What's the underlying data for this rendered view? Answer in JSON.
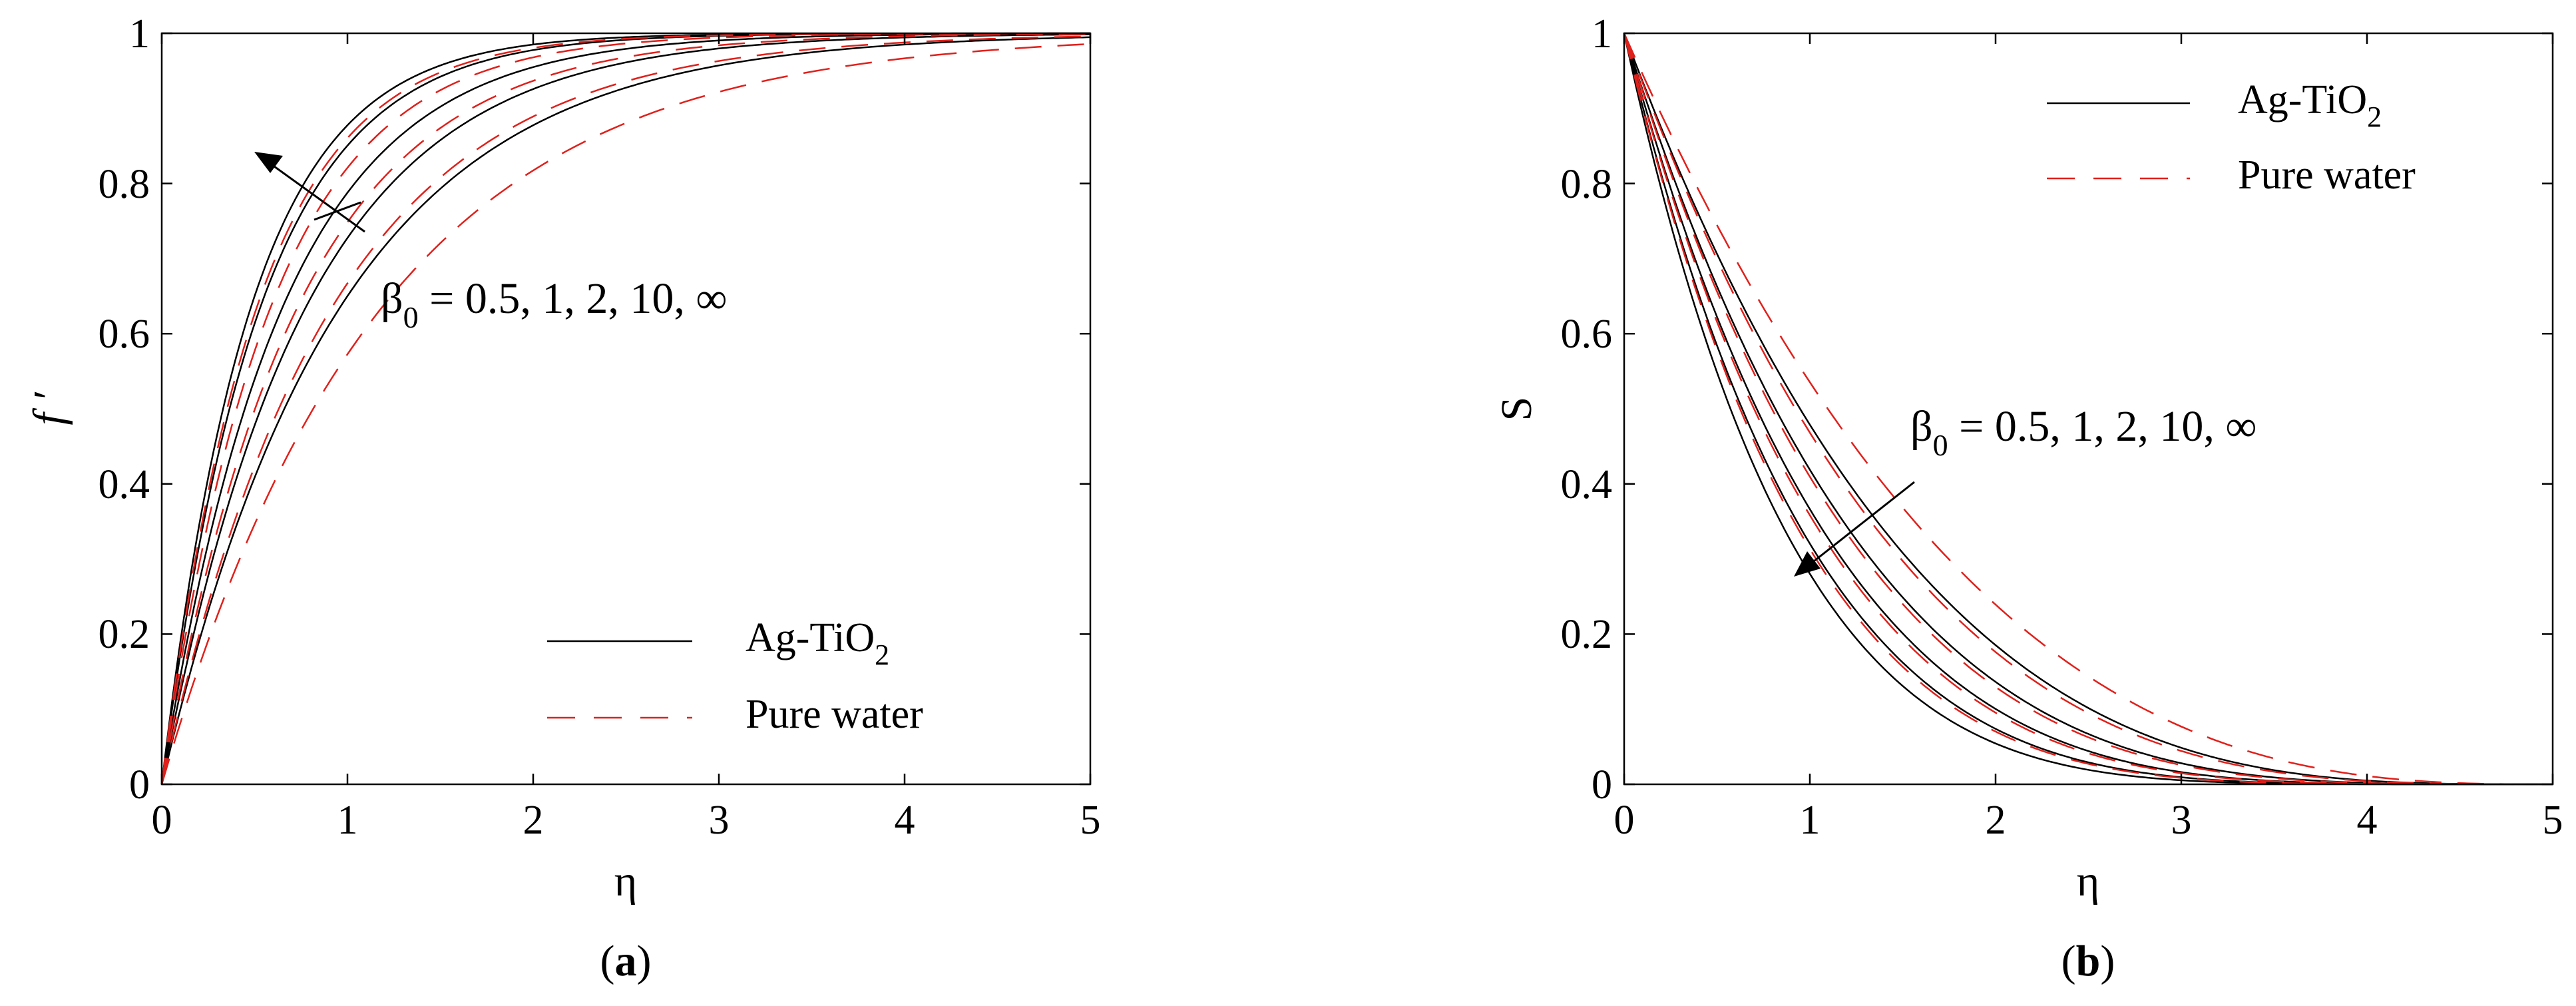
{
  "colors": {
    "nanofluid": "#000000",
    "water": "#e0201b",
    "axes": "#000000",
    "background": "#ffffff"
  },
  "chart_data": [
    {
      "type": "line",
      "panel": "a",
      "caption_open": "(",
      "caption_letter": "a",
      "caption_close": ")",
      "xlabel": "η",
      "ylabel": "f ′",
      "xlim": [
        0,
        5
      ],
      "ylim": [
        0,
        1
      ],
      "xticks": [
        "0",
        "1",
        "2",
        "3",
        "4",
        "5"
      ],
      "yticks": [
        "0",
        "0.2",
        "0.4",
        "0.6",
        "0.8",
        "1"
      ],
      "annotation": {
        "symbol": "β",
        "subscript": "0",
        "text": " = 0.5, 1, 2, 10, ∞",
        "arrow": "toward increasing β0 (up-left)"
      },
      "legend": {
        "position": "bottom-right",
        "entries": [
          {
            "label": "Ag-TiO",
            "sub": "2",
            "style": "solid"
          },
          {
            "label": "Pure water",
            "sub": "",
            "style": "dashed"
          }
        ]
      },
      "curve_model": "f'(η) = 1 - exp(-k η)",
      "series": [
        {
          "name": "Ag-TiO2",
          "beta0": "0.5",
          "k": 1.05
        },
        {
          "name": "Ag-TiO2",
          "beta0": "1",
          "k": 1.3
        },
        {
          "name": "Ag-TiO2",
          "beta0": "2",
          "k": 1.55
        },
        {
          "name": "Ag-TiO2",
          "beta0": "10",
          "k": 1.9
        },
        {
          "name": "Ag-TiO2",
          "beta0": "∞",
          "k": 2.1
        },
        {
          "name": "Pure water",
          "beta0": "0.5",
          "k": 0.85
        },
        {
          "name": "Pure water",
          "beta0": "1",
          "k": 1.1
        },
        {
          "name": "Pure water",
          "beta0": "2",
          "k": 1.38
        },
        {
          "name": "Pure water",
          "beta0": "10",
          "k": 1.72
        },
        {
          "name": "Pure water",
          "beta0": "∞",
          "k": 1.97
        }
      ]
    },
    {
      "type": "line",
      "panel": "b",
      "caption_open": "(",
      "caption_letter": "b",
      "caption_close": ")",
      "xlabel": "η",
      "ylabel": "S",
      "xlim": [
        0,
        5
      ],
      "ylim": [
        0,
        1
      ],
      "xticks": [
        "0",
        "1",
        "2",
        "3",
        "4",
        "5"
      ],
      "yticks": [
        "0",
        "0.2",
        "0.4",
        "0.6",
        "0.8",
        "1"
      ],
      "annotation": {
        "symbol": "β",
        "subscript": "0",
        "text": " = 0.5, 1, 2, 10, ∞",
        "arrow": "toward increasing β0 (down-left)"
      },
      "legend": {
        "position": "top-right",
        "entries": [
          {
            "label": "Ag-TiO",
            "sub": "2",
            "style": "solid"
          },
          {
            "label": "Pure water",
            "sub": "",
            "style": "dashed"
          }
        ]
      },
      "curve_model": "S(η) = (1 - η/5)^p",
      "series": [
        {
          "name": "Ag-TiO2",
          "beta0": "0.5",
          "p": 3.3
        },
        {
          "name": "Ag-TiO2",
          "beta0": "1",
          "p": 3.9
        },
        {
          "name": "Ag-TiO2",
          "beta0": "2",
          "p": 4.5
        },
        {
          "name": "Ag-TiO2",
          "beta0": "10",
          "p": 5.1
        },
        {
          "name": "Ag-TiO2",
          "beta0": "∞",
          "p": 5.7
        },
        {
          "name": "Pure water",
          "beta0": "0.5",
          "p": 2.8
        },
        {
          "name": "Pure water",
          "beta0": "1",
          "p": 3.4
        },
        {
          "name": "Pure water",
          "beta0": "2",
          "p": 4.0
        },
        {
          "name": "Pure water",
          "beta0": "10",
          "p": 4.6
        },
        {
          "name": "Pure water",
          "beta0": "∞",
          "p": 5.2
        }
      ]
    }
  ]
}
